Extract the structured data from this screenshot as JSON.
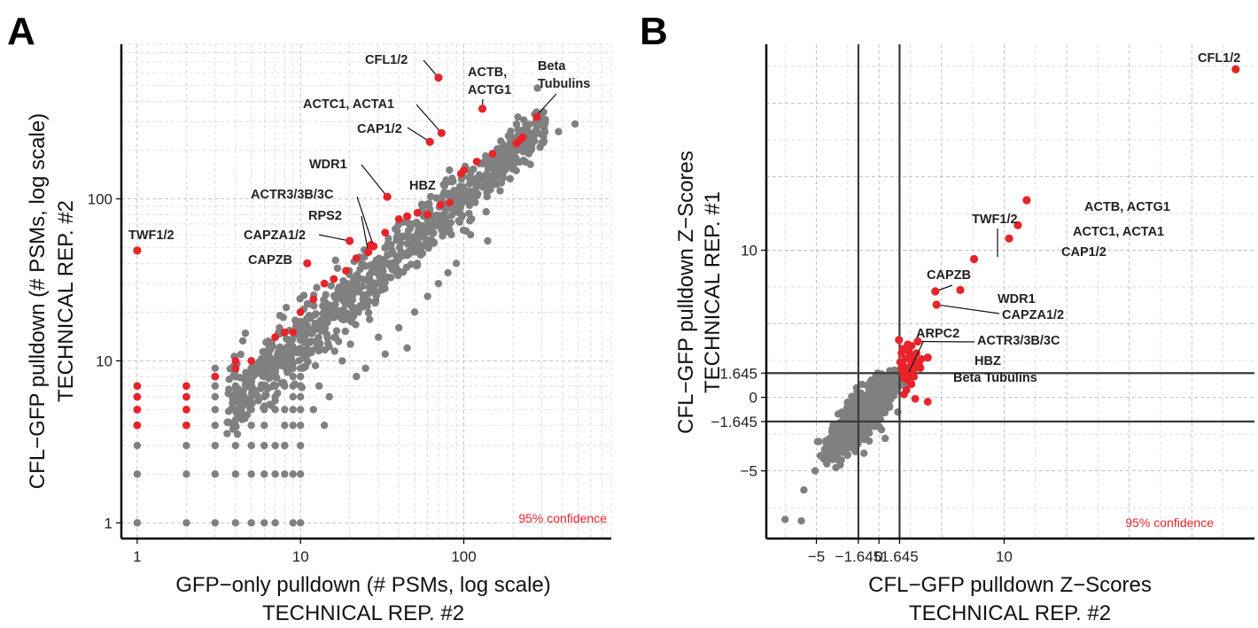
{
  "panel_a_letter": "A",
  "panel_b_letter": "B",
  "colors": {
    "background": "#808080",
    "hit": "#e8232a",
    "confidence_text": "#e8232a"
  },
  "chart_data": [
    {
      "id": "A",
      "type": "scatter",
      "x_scale": "log",
      "y_scale": "log",
      "xlabel_line1": "GFP−only pulldown (# PSMs, log scale)",
      "xlabel_line2": "TECHNICAL REP. #2",
      "ylabel_line1": "CFL−GFP pulldown (# PSMs, log scale)",
      "ylabel_line2": "TECHNICAL REP. #2",
      "xlim": [
        0.8,
        800
      ],
      "ylim": [
        0.8,
        900
      ],
      "x_ticks": [
        {
          "value": 1,
          "label": "1"
        },
        {
          "value": 10,
          "label": "10"
        },
        {
          "value": 100,
          "label": "100"
        }
      ],
      "y_ticks": [
        {
          "value": 1,
          "label": "1"
        },
        {
          "value": 10,
          "label": "10"
        },
        {
          "value": 100,
          "label": "100"
        }
      ],
      "grid": true,
      "confidence_text": "95% confidence",
      "labeled_points": [
        {
          "label": "CFL1/2",
          "x": 70,
          "y": 560
        },
        {
          "label": "ACTB,",
          "label2": "ACTG1",
          "x": 130,
          "y": 360
        },
        {
          "label": "Beta",
          "label2": "Tubulins",
          "x": 280,
          "y": 320
        },
        {
          "label": "ACTC1, ACTA1",
          "x": 73,
          "y": 255
        },
        {
          "label": "CAP1/2",
          "x": 62,
          "y": 225
        },
        {
          "label": "WDR1",
          "x": 34,
          "y": 103
        },
        {
          "label": "HBZ",
          "x": 45,
          "y": 78
        },
        {
          "label": "ACTR3/3B/3C",
          "x": 28,
          "y": 51
        },
        {
          "label": "RPS2",
          "x": 26,
          "y": 47
        },
        {
          "label": "CAPZA1/2",
          "x": 20,
          "y": 55
        },
        {
          "label": "CAPZB",
          "x": 11,
          "y": 40
        },
        {
          "label": "TWF1/2",
          "x": 1,
          "y": 48
        }
      ],
      "hit_points": [
        {
          "x": 1,
          "y": 7
        },
        {
          "x": 1,
          "y": 6
        },
        {
          "x": 1,
          "y": 5
        },
        {
          "x": 1,
          "y": 4
        },
        {
          "x": 2,
          "y": 7
        },
        {
          "x": 2,
          "y": 6
        },
        {
          "x": 2,
          "y": 5
        },
        {
          "x": 2,
          "y": 4
        },
        {
          "x": 3,
          "y": 8
        },
        {
          "x": 4,
          "y": 9
        },
        {
          "x": 4,
          "y": 10
        },
        {
          "x": 5,
          "y": 10
        },
        {
          "x": 7,
          "y": 14
        },
        {
          "x": 8,
          "y": 15
        },
        {
          "x": 9,
          "y": 15
        },
        {
          "x": 10,
          "y": 20
        },
        {
          "x": 12,
          "y": 24
        },
        {
          "x": 14,
          "y": 30
        },
        {
          "x": 16,
          "y": 32
        },
        {
          "x": 19,
          "y": 36
        },
        {
          "x": 22,
          "y": 43
        },
        {
          "x": 27,
          "y": 52
        },
        {
          "x": 33,
          "y": 62
        },
        {
          "x": 40,
          "y": 75
        },
        {
          "x": 52,
          "y": 82
        },
        {
          "x": 72,
          "y": 92
        },
        {
          "x": 82,
          "y": 95
        },
        {
          "x": 96,
          "y": 143
        },
        {
          "x": 100,
          "y": 150
        },
        {
          "x": 120,
          "y": 170
        },
        {
          "x": 150,
          "y": 190
        },
        {
          "x": 220,
          "y": 230
        },
        {
          "x": 230,
          "y": 240
        },
        {
          "x": 210,
          "y": 220
        },
        {
          "x": 60,
          "y": 80
        }
      ]
    },
    {
      "id": "B",
      "type": "scatter",
      "x_scale": "linear",
      "y_scale": "linear",
      "xlabel_line1": "CFL−GFP pulldown Z−Scores",
      "xlabel_line2": "TECHNICAL REP. #2",
      "ylabel_line1": "CFL−GFP pulldown Z−Scores",
      "ylabel_line2": "TECHNICAL REP. #1",
      "xlim": [
        -9,
        30
      ],
      "ylim": [
        -9.6,
        24
      ],
      "x_ticks": [
        {
          "value": -5,
          "label": "−5"
        },
        {
          "value": -1.645,
          "label": "−1.645"
        },
        {
          "value": 0,
          "label": "0"
        },
        {
          "value": 1.645,
          "label": "1.645"
        },
        {
          "value": 10,
          "label": "10"
        }
      ],
      "y_ticks": [
        {
          "value": -5,
          "label": "−5"
        },
        {
          "value": -1.645,
          "label": "−1.645"
        },
        {
          "value": 0,
          "label": "0"
        },
        {
          "value": 1.645,
          "label": "1.645"
        },
        {
          "value": 10,
          "label": "10"
        }
      ],
      "reference_lines": {
        "x": [
          -1.645,
          1.645
        ],
        "y": [
          -1.645,
          1.645
        ]
      },
      "grid": true,
      "confidence_text": "95% confidence",
      "labeled_points": [
        {
          "label": "CFL1/2",
          "x": 28.5,
          "y": 22.3
        },
        {
          "label": "ACTB, ACTG1",
          "x": 11.8,
          "y": 13.4
        },
        {
          "label": "ACTC1, ACTA1",
          "x": 11.1,
          "y": 11.7
        },
        {
          "label": "CAP1/2",
          "x": 10.4,
          "y": 10.8
        },
        {
          "label": "TWF1/2",
          "x": 7.6,
          "y": 9.4
        },
        {
          "label": "CAPZB",
          "x": 4.5,
          "y": 7.2
        },
        {
          "label": "WDR1",
          "x": 6.5,
          "y": 7.3
        },
        {
          "label": "CAPZA1/2",
          "x": 4.6,
          "y": 6.3
        },
        {
          "label": "ARPC2",
          "x": 1.6,
          "y": 3.9
        },
        {
          "label": "ACTR3/3B/3C",
          "x": 3.1,
          "y": 3.8
        },
        {
          "label": "HBZ",
          "x": 3.9,
          "y": 2.7
        },
        {
          "label": "Beta Tubulins",
          "x": 3.3,
          "y": 2.0
        }
      ],
      "hit_points": [
        {
          "x": 2.0,
          "y": 2.1
        },
        {
          "x": 2.3,
          "y": 1.9
        },
        {
          "x": 2.6,
          "y": 2.3
        },
        {
          "x": 2.1,
          "y": 2.6
        },
        {
          "x": 2.8,
          "y": 2.8
        },
        {
          "x": 2.4,
          "y": 3.1
        },
        {
          "x": 1.9,
          "y": 3.3
        },
        {
          "x": 2.2,
          "y": 2.0
        },
        {
          "x": 2.7,
          "y": 1.8
        },
        {
          "x": 3.0,
          "y": 2.4
        },
        {
          "x": 1.8,
          "y": 2.0
        },
        {
          "x": 1.9,
          "y": 1.7
        },
        {
          "x": 2.5,
          "y": 1.6
        },
        {
          "x": 2.1,
          "y": 1.5
        },
        {
          "x": 2.9,
          "y": 2.0
        },
        {
          "x": 1.7,
          "y": 2.4
        },
        {
          "x": 2.6,
          "y": 3.5
        },
        {
          "x": 3.2,
          "y": 2.2
        },
        {
          "x": 2.8,
          "y": 1.4
        },
        {
          "x": 2.0,
          "y": 1.3
        },
        {
          "x": 2.4,
          "y": 2.7
        },
        {
          "x": 3.4,
          "y": 2.6
        },
        {
          "x": 2.3,
          "y": 3.6
        },
        {
          "x": 2.7,
          "y": 2.5
        },
        {
          "x": 3.0,
          "y": 3.0
        },
        {
          "x": 1.8,
          "y": 3.0
        },
        {
          "x": 2.4,
          "y": 1.1
        },
        {
          "x": 2.9,
          "y": -0.1
        },
        {
          "x": 3.9,
          "y": -0.3
        },
        {
          "x": 2.2,
          "y": 0.5
        },
        {
          "x": 2.6,
          "y": 0.9
        },
        {
          "x": 2.0,
          "y": 0.2
        }
      ]
    }
  ]
}
